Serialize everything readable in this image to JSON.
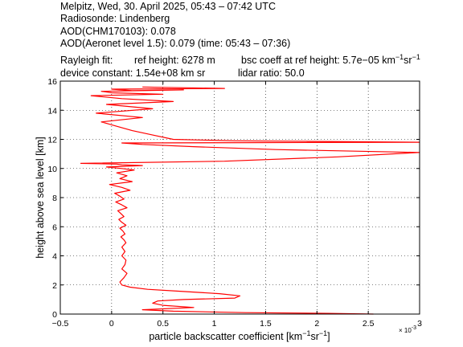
{
  "header": {
    "line1": "Melpitz, Wed, 30. April 2025, 05:43 – 07:42 UTC",
    "line2": "Radiosonde: Lindenberg",
    "line3": "AOD(CHM170103): 0.078",
    "line4": "AOD(Aeronet level 1.5): 0.079   (time: 05:43 – 07:36)",
    "rayleigh_label": "Rayleigh fit:",
    "ref_height": "ref height: 6278 m",
    "bsc_coeff_prefix": "bsc coeff at ref height: 5.7e−05 km",
    "device_constant": "device constant: 1.54e+08 km sr",
    "lidar_ratio": "lidar ratio: 50.0"
  },
  "colors": {
    "profile": "#ff0000",
    "axes": "#000000",
    "grid": "#000000"
  },
  "chart_data": {
    "type": "line",
    "title": "",
    "xlabel": "particle backscatter coefficient [km⁻¹sr⁻¹]",
    "xlabel_main": "particle backscatter coefficient [km",
    "xlabel_mid": "sr",
    "xlabel_end": "]",
    "ylabel": "height above sea level [km]",
    "x_multiplier": "× 10",
    "x_multiplier_exp": "-3",
    "xlim": [
      -0.5,
      3
    ],
    "ylim": [
      0,
      16
    ],
    "xticks": [
      -0.5,
      0,
      0.5,
      1,
      1.5,
      2,
      2.5,
      3
    ],
    "xtick_labels": [
      "−0.5",
      "0",
      "0.5",
      "1",
      "1.5",
      "2",
      "2.5",
      "3"
    ],
    "yticks": [
      0,
      2,
      4,
      6,
      8,
      10,
      12,
      14,
      16
    ],
    "ytick_labels": [
      "0",
      "2",
      "4",
      "6",
      "8",
      "10",
      "12",
      "14",
      "16"
    ],
    "grid": true,
    "legend": "none",
    "series": [
      {
        "x": [
          2.55,
          2.1,
          1.3,
          0.6,
          0.3,
          0.8,
          0.5,
          0.4,
          0.45,
          0.7,
          1.2,
          1.25,
          1.05,
          0.7,
          0.35,
          0.18,
          0.1,
          0.08,
          0.12,
          0.15,
          0.1,
          0.13,
          0.14,
          0.1,
          0.13,
          0.1,
          0.14,
          0.12,
          0.09,
          0.13,
          0.11,
          0.08,
          0.14,
          0.1,
          0.07,
          0.12,
          0.09,
          0.06,
          0.15,
          0.1,
          0.04,
          0.12,
          0.08,
          0.03,
          0.18,
          0.1,
          -0.02,
          0.2,
          0.08,
          0.15,
          0.05,
          0.22,
          0.1,
          -0.05,
          0.3,
          0.1,
          0.05,
          -0.3,
          1.1,
          2.2,
          3.0,
          1.6,
          0.8,
          0.3,
          0.1,
          3.0,
          1.2,
          0.6,
          0.4,
          0.2,
          0.05,
          -0.1,
          0.3,
          -0.15,
          0.4,
          -0.05,
          0.6,
          0.1,
          -0.2,
          0.5,
          0.0,
          -0.1,
          0.7,
          0.2,
          0.0,
          1.1,
          0.3
        ],
        "y": [
          0.0,
          0.05,
          0.1,
          0.2,
          0.3,
          0.45,
          0.6,
          0.75,
          0.9,
          1.0,
          1.1,
          1.25,
          1.4,
          1.55,
          1.7,
          1.85,
          2.0,
          2.2,
          2.5,
          2.8,
          3.1,
          3.4,
          3.7,
          4.0,
          4.3,
          4.6,
          4.9,
          5.1,
          5.3,
          5.5,
          5.7,
          5.9,
          6.1,
          6.3,
          6.5,
          6.7,
          6.9,
          7.1,
          7.3,
          7.5,
          7.7,
          7.9,
          8.1,
          8.3,
          8.5,
          8.7,
          8.9,
          9.1,
          9.3,
          9.5,
          9.7,
          9.9,
          10.0,
          10.1,
          10.2,
          10.25,
          10.3,
          10.35,
          10.5,
          10.8,
          11.1,
          11.3,
          11.5,
          11.65,
          11.75,
          11.8,
          11.9,
          12.0,
          12.3,
          12.6,
          12.9,
          13.2,
          13.5,
          13.8,
          14.1,
          14.4,
          14.6,
          14.8,
          15.0,
          15.1,
          15.2,
          15.3,
          15.4,
          15.35,
          15.45,
          15.5,
          15.6
        ]
      }
    ]
  }
}
